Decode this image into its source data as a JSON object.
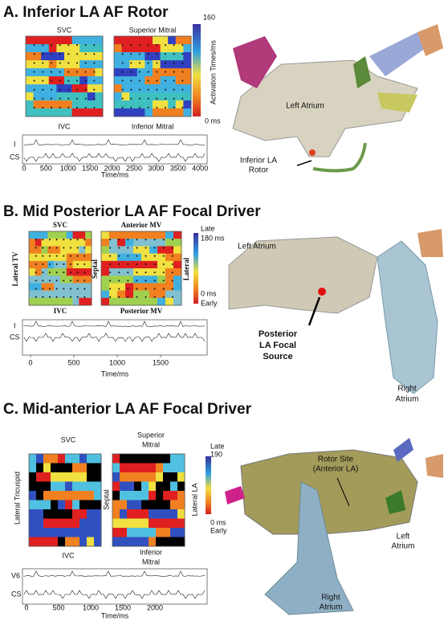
{
  "panels": [
    {
      "title": "A. Inferior LA AF Rotor",
      "map_labels": [
        "SVC",
        "IVC",
        "Superior Mitral",
        "Inferior Mitral"
      ],
      "colorbar_labels": [
        "160",
        "Activation Times/ms",
        "0 ms"
      ],
      "ecg": {
        "leads": [
          "I",
          "CS"
        ],
        "ticks": [
          "0",
          "500",
          "1000",
          "1500",
          "2000",
          "2500",
          "3000",
          "3500",
          "4000"
        ],
        "axis_label": "Time/ms"
      },
      "anatomy_labels": [
        "Left Atrium",
        "Inferior LA",
        "Rotor"
      ]
    },
    {
      "title": "B. Mid Posterior LA AF Focal Driver",
      "map_labels": [
        "SVC",
        "IVC",
        "Lateral TV",
        "Anterior MV",
        "Posterior MV",
        "Septal",
        "Lateral"
      ],
      "colorbar_labels": [
        "Late",
        "180 ms",
        "0 ms",
        "Early"
      ],
      "ecg": {
        "leads": [
          "I",
          "CS"
        ],
        "ticks": [
          "0",
          "500",
          "1000",
          "1500"
        ],
        "axis_label": "Time/ms"
      },
      "anatomy_labels": [
        "Left Atrium",
        "Posterior",
        "LA Focal",
        "Source",
        "Right",
        "Atrium"
      ]
    },
    {
      "title": "C. Mid-anterior LA AF Focal Driver",
      "map_labels": [
        "SVC",
        "IVC",
        "Lateral Tricuspid",
        "Superior",
        "Mitral",
        "Inferior",
        "Mitral",
        "Septal",
        "Lateral LA"
      ],
      "colorbar_labels": [
        "Late",
        "190",
        "0 ms",
        "Early"
      ],
      "ecg": {
        "leads": [
          "V6",
          "CS"
        ],
        "ticks": [
          "0",
          "500",
          "1000",
          "1500",
          "2000"
        ],
        "axis_label": "Time/ms"
      },
      "anatomy_labels": [
        "Rotor Site",
        "(Anterior LA)",
        "Left",
        "Atrium",
        "Right",
        "Atrium"
      ]
    }
  ]
}
